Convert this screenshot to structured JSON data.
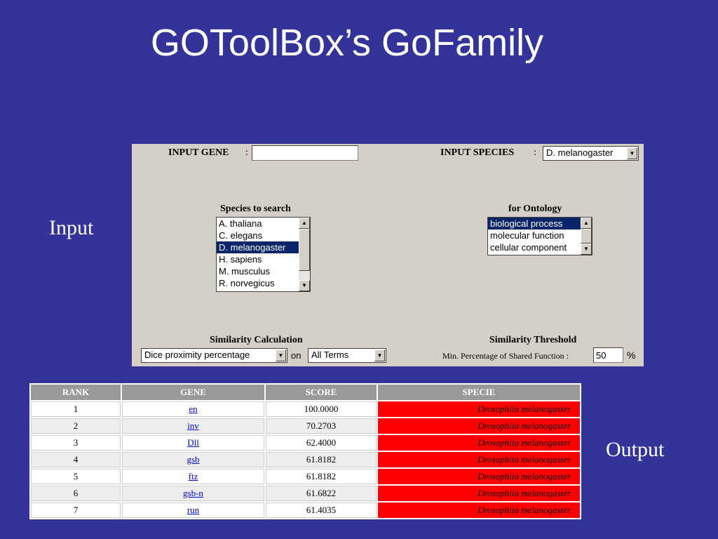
{
  "title": "GOToolBox’s GoFamily",
  "labels": {
    "input": "Input",
    "output": "Output"
  },
  "input_panel": {
    "input_gene_label": "INPUT GENE",
    "input_gene_sep": ":",
    "input_gene_value": "",
    "input_species_label": "INPUT SPECIES",
    "input_species_sep": ":",
    "input_species_value": "D. melanogaster",
    "species_to_search_label": "Species to search",
    "species_options": [
      {
        "label": "A. thaliana",
        "selected": false
      },
      {
        "label": "C. elegans",
        "selected": false
      },
      {
        "label": "D. melanogaster",
        "selected": true
      },
      {
        "label": "H. sapiens",
        "selected": false
      },
      {
        "label": "M. musculus",
        "selected": false
      },
      {
        "label": "R. norvegicus",
        "selected": false
      }
    ],
    "ontology_label": "for Ontology",
    "ontology_options": [
      {
        "label": "biological process",
        "selected": true
      },
      {
        "label": "molecular function",
        "selected": false
      },
      {
        "label": "cellular component",
        "selected": false
      }
    ],
    "similarity_calc_label": "Similarity Calculation",
    "similarity_calc_value": "Dice proximity percentage",
    "on_label": "on",
    "terms_value": "All Terms",
    "similarity_threshold_label": "Similarity Threshold",
    "min_percentage_label": "Min. Percentage of Shared Function :",
    "min_percentage_value": "50",
    "percent_sign": "%"
  },
  "results": {
    "headers": [
      "RANK",
      "GENE",
      "SCORE",
      "SPECIE"
    ],
    "rows": [
      {
        "rank": "1",
        "gene": "en",
        "score": "100.0000",
        "specie": "Drosophila melanogaster"
      },
      {
        "rank": "2",
        "gene": "inv",
        "score": "70.2703",
        "specie": "Drosophila melanogaster"
      },
      {
        "rank": "3",
        "gene": "Dll",
        "score": "62.4000",
        "specie": "Drosophila melanogaster"
      },
      {
        "rank": "4",
        "gene": "gsb",
        "score": "61.8182",
        "specie": "Drosophila melanogaster"
      },
      {
        "rank": "5",
        "gene": "ftz",
        "score": "61.8182",
        "specie": "Drosophila melanogaster"
      },
      {
        "rank": "6",
        "gene": "gsb-n",
        "score": "61.6822",
        "specie": "Drosophila melanogaster"
      },
      {
        "rank": "7",
        "gene": "run",
        "score": "61.4035",
        "specie": "Drosophila melanogaster"
      }
    ]
  }
}
